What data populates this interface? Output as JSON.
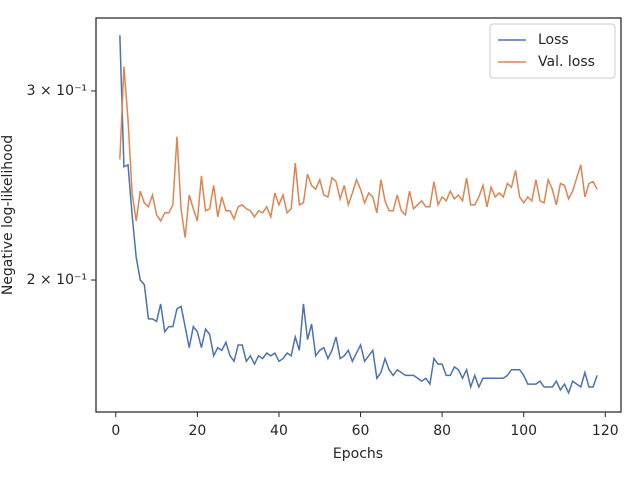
{
  "chart_data": {
    "type": "line",
    "xlabel": "Epochs",
    "ylabel": "Negative log-likelihood",
    "x": [
      1,
      2,
      3,
      4,
      5,
      6,
      7,
      8,
      9,
      10,
      11,
      12,
      13,
      14,
      15,
      16,
      17,
      18,
      19,
      20,
      21,
      22,
      23,
      24,
      25,
      26,
      27,
      28,
      29,
      30,
      31,
      32,
      33,
      34,
      35,
      36,
      37,
      38,
      39,
      40,
      41,
      42,
      43,
      44,
      45,
      46,
      47,
      48,
      49,
      50,
      51,
      52,
      53,
      54,
      55,
      56,
      57,
      58,
      59,
      60,
      61,
      62,
      63,
      64,
      65,
      66,
      67,
      68,
      69,
      70,
      71,
      72,
      73,
      74,
      75,
      76,
      77,
      78,
      79,
      80,
      81,
      82,
      83,
      84,
      85,
      86,
      87,
      88,
      89,
      90,
      91,
      92,
      93,
      94,
      95,
      96,
      97,
      98,
      99,
      100,
      101,
      102,
      103,
      104,
      105,
      106,
      107,
      108,
      109,
      110,
      111,
      112,
      113,
      114,
      115,
      116,
      117,
      118
    ],
    "series": [
      {
        "name": "Loss",
        "color": "#4c72b0",
        "values": [
          0.338,
          0.255,
          0.256,
          0.23,
          0.21,
          0.2,
          0.198,
          0.184,
          0.184,
          0.183,
          0.19,
          0.179,
          0.181,
          0.181,
          0.188,
          0.189,
          0.181,
          0.173,
          0.181,
          0.179,
          0.173,
          0.18,
          0.178,
          0.17,
          0.173,
          0.172,
          0.175,
          0.17,
          0.168,
          0.174,
          0.174,
          0.168,
          0.17,
          0.167,
          0.17,
          0.169,
          0.171,
          0.17,
          0.171,
          0.168,
          0.169,
          0.171,
          0.17,
          0.177,
          0.172,
          0.19,
          0.176,
          0.182,
          0.17,
          0.172,
          0.173,
          0.169,
          0.172,
          0.177,
          0.169,
          0.17,
          0.172,
          0.168,
          0.171,
          0.174,
          0.168,
          0.17,
          0.172,
          0.162,
          0.164,
          0.169,
          0.165,
          0.163,
          0.165,
          0.164,
          0.163,
          0.163,
          0.163,
          0.162,
          0.161,
          0.162,
          0.16,
          0.169,
          0.167,
          0.167,
          0.163,
          0.163,
          0.166,
          0.165,
          0.162,
          0.165,
          0.159,
          0.163,
          0.159,
          0.162,
          0.162,
          0.162,
          0.162,
          0.162,
          0.162,
          0.163,
          0.165,
          0.165,
          0.165,
          0.163,
          0.16,
          0.16,
          0.16,
          0.161,
          0.159,
          0.159,
          0.159,
          0.161,
          0.158,
          0.16,
          0.157,
          0.161,
          0.16,
          0.159,
          0.164,
          0.159,
          0.159,
          0.163
        ]
      },
      {
        "name": "Val. loss",
        "color": "#dd8452",
        "values": [
          0.259,
          0.316,
          0.282,
          0.241,
          0.227,
          0.242,
          0.236,
          0.234,
          0.24,
          0.23,
          0.227,
          0.231,
          0.231,
          0.235,
          0.272,
          0.233,
          0.219,
          0.24,
          0.233,
          0.227,
          0.25,
          0.232,
          0.233,
          0.245,
          0.229,
          0.239,
          0.232,
          0.232,
          0.228,
          0.234,
          0.235,
          0.233,
          0.232,
          0.229,
          0.232,
          0.231,
          0.234,
          0.229,
          0.241,
          0.235,
          0.24,
          0.231,
          0.233,
          0.257,
          0.235,
          0.236,
          0.251,
          0.245,
          0.243,
          0.248,
          0.24,
          0.239,
          0.249,
          0.247,
          0.238,
          0.245,
          0.235,
          0.241,
          0.248,
          0.243,
          0.236,
          0.241,
          0.239,
          0.231,
          0.248,
          0.237,
          0.232,
          0.232,
          0.24,
          0.232,
          0.23,
          0.242,
          0.233,
          0.235,
          0.237,
          0.234,
          0.234,
          0.247,
          0.235,
          0.239,
          0.237,
          0.242,
          0.238,
          0.24,
          0.237,
          0.249,
          0.235,
          0.235,
          0.239,
          0.245,
          0.234,
          0.244,
          0.239,
          0.241,
          0.239,
          0.246,
          0.244,
          0.253,
          0.239,
          0.236,
          0.239,
          0.237,
          0.248,
          0.237,
          0.236,
          0.248,
          0.243,
          0.235,
          0.246,
          0.245,
          0.238,
          0.242,
          0.249,
          0.256,
          0.239,
          0.246,
          0.247,
          0.243
        ]
      }
    ],
    "xlim": [
      -4.85,
      123.85
    ],
    "xticks": [
      0,
      20,
      40,
      60,
      80,
      100,
      120
    ],
    "ylim": [
      0.1507,
      0.3508
    ],
    "yscale": "log",
    "yticks": [
      {
        "value": 0.3,
        "label": "3 × 10⁻¹"
      },
      {
        "value": 0.2,
        "label": "2 × 10⁻¹"
      }
    ],
    "legend": "upper right"
  }
}
